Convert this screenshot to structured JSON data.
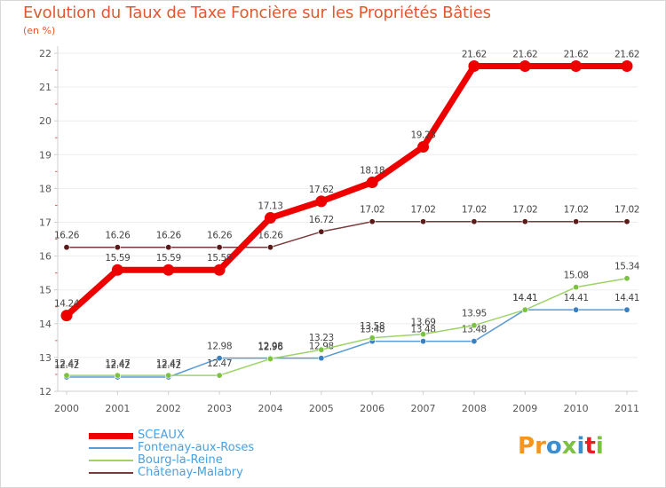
{
  "title": "Evolution du Taux de Taxe Foncière sur les Propriétés Bâties",
  "unit_label": "(en %)",
  "brand": {
    "text": "Proxiti",
    "colors": [
      "#f7941d",
      "#f7941d",
      "#3b8fd0",
      "#7cc242",
      "#3b8fd0",
      "#ec1c24",
      "#7cc242"
    ]
  },
  "colors": {
    "title": "#e4572e",
    "grid": "#eeeeee",
    "axis": "#cfcfcf",
    "tick_label": "#555555",
    "point_label": "#444444",
    "legend_text": "#4aa0e0"
  },
  "chart_data": {
    "type": "line",
    "title": "Evolution du Taux de Taxe Foncière sur les Propriétés Bâties",
    "ylabel": "(en %)",
    "xlabel": "",
    "x": [
      "2000",
      "2001",
      "2002",
      "2003",
      "2004",
      "2005",
      "2006",
      "2007",
      "2008",
      "2009",
      "2010",
      "2011"
    ],
    "ylim": [
      12,
      22
    ],
    "yticks": [
      "12",
      "13",
      "14",
      "15",
      "16",
      "17",
      "18",
      "19",
      "20",
      "21",
      "22"
    ],
    "legend_position": "bottom-left",
    "series": [
      {
        "name": "Châtenay-Malabry",
        "color": "#7a3a3a",
        "marker": "#5a1a1a",
        "width": 1.5,
        "values": [
          16.26,
          16.26,
          16.26,
          16.26,
          16.26,
          16.72,
          17.02,
          17.02,
          17.02,
          17.02,
          17.02,
          17.02
        ],
        "labels": [
          "16.26",
          "16.26",
          "16.26",
          "16.26",
          "16.26",
          "16.72",
          "17.02",
          "17.02",
          "17.02",
          "17.02",
          "17.02",
          "17.02"
        ]
      },
      {
        "name": "Fontenay-aux-Roses",
        "color": "#5b9bd5",
        "marker": "#3a7fc0",
        "width": 1.5,
        "values": [
          12.42,
          12.42,
          12.42,
          12.98,
          12.98,
          12.98,
          13.48,
          13.48,
          13.48,
          14.41,
          14.41,
          14.41
        ],
        "labels": [
          "12.42",
          "12.42",
          "12.42",
          "12.98",
          "12.98",
          "12.98",
          "13.48",
          "13.48",
          "13.48",
          "14.41",
          "14.41",
          "14.41"
        ]
      },
      {
        "name": "Bourg-la-Reine",
        "color": "#9ed36a",
        "marker": "#7cc242",
        "width": 1.5,
        "values": [
          12.47,
          12.47,
          12.47,
          12.47,
          12.96,
          13.23,
          13.58,
          13.69,
          13.95,
          14.41,
          15.08,
          15.34
        ],
        "labels": [
          "12.47",
          "12.47",
          "12.47",
          "12.47",
          "12.96",
          "13.23",
          "13.58",
          "13.69",
          "13.95",
          "14.41",
          "15.08",
          "15.34"
        ]
      },
      {
        "name": "SCEAUX",
        "color": "#ee0000",
        "marker": "#ee0000",
        "width": 7,
        "values": [
          14.24,
          15.59,
          15.59,
          15.59,
          17.13,
          17.62,
          18.18,
          19.23,
          21.62,
          21.62,
          21.62,
          21.62
        ],
        "labels": [
          "14.24",
          "15.59",
          "15.59",
          "15.59",
          "17.13",
          "17.62",
          "18.18",
          "19.23",
          "21.62",
          "21.62",
          "21.62",
          "21.62"
        ]
      }
    ],
    "legend": [
      {
        "name": "SCEAUX",
        "color": "#ee0000",
        "width": 7
      },
      {
        "name": "Fontenay-aux-Roses",
        "color": "#5b9bd5",
        "width": 2
      },
      {
        "name": "Bourg-la-Reine",
        "color": "#9ed36a",
        "width": 2
      },
      {
        "name": "Châtenay-Malabry",
        "color": "#7a3a3a",
        "width": 2
      }
    ]
  }
}
